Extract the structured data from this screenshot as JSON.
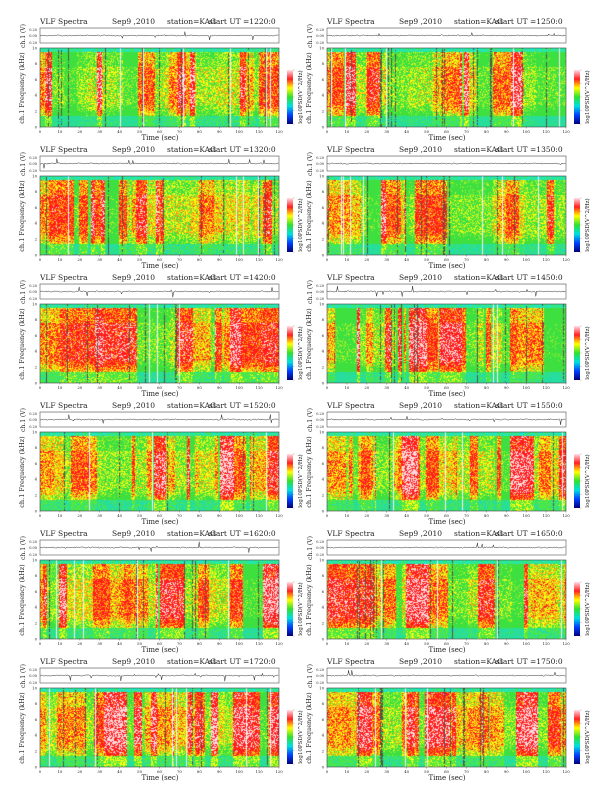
{
  "chart_data": {
    "type": "heatmap",
    "title": "VLF Spectra",
    "xlabel": "Time (sec)",
    "ylabel": "ch.1 Frequency (kHz)",
    "waveform_ylabel": "ch.1 (V)",
    "colorbar_label": "log10PSD(V^2/Hz)",
    "xlim": [
      0,
      120
    ],
    "ylim": [
      0,
      10
    ],
    "waveform_ylim": [
      -0.2,
      0.2
    ],
    "x_ticks": [
      "0",
      "10",
      "20",
      "30",
      "40",
      "50",
      "60",
      "70",
      "80",
      "90",
      "100",
      "110",
      "120"
    ],
    "y_ticks": [
      "0",
      "2",
      "4",
      "6",
      "8",
      "10"
    ],
    "waveform_ticks": [
      "0.20",
      "0.00",
      "0.20"
    ],
    "colormap": [
      "#00007a",
      "#0040ff",
      "#00e0e0",
      "#30e030",
      "#ffff00",
      "#ff2020",
      "#ffe0e8"
    ],
    "panels": [
      {
        "title": "VLF Spectra",
        "date": "Sep9 ,2010",
        "station": "station=KAG",
        "start_ut": "start  UT  =1220:0"
      },
      {
        "title": "VLF Spectra",
        "date": "Sep9 ,2010",
        "station": "station=KAG",
        "start_ut": "start  UT  =1250:0"
      },
      {
        "title": "VLF Spectra",
        "date": "Sep9 ,2010",
        "station": "station=KAG",
        "start_ut": "start  UT  =1320:0"
      },
      {
        "title": "VLF Spectra",
        "date": "Sep9 ,2010",
        "station": "station=KAG",
        "start_ut": "start  UT  =1350:0"
      },
      {
        "title": "VLF Spectra",
        "date": "Sep9 ,2010",
        "station": "station=KAG",
        "start_ut": "start  UT  =1420:0"
      },
      {
        "title": "VLF Spectra",
        "date": "Sep9 ,2010",
        "station": "station=KAG",
        "start_ut": "start  UT  =1450:0"
      },
      {
        "title": "VLF Spectra",
        "date": "Sep9 ,2010",
        "station": "station=KAG",
        "start_ut": "start  UT  =1520:0"
      },
      {
        "title": "VLF Spectra",
        "date": "Sep9 ,2010",
        "station": "station=KAG",
        "start_ut": "start  UT  =1550:0"
      },
      {
        "title": "VLF Spectra",
        "date": "Sep9 ,2010",
        "station": "station=KAG",
        "start_ut": "start  UT  =1620:0"
      },
      {
        "title": "VLF Spectra",
        "date": "Sep9 ,2010",
        "station": "station=KAG",
        "start_ut": "start  UT  =1650:0"
      },
      {
        "title": "VLF Spectra",
        "date": "Sep9 ,2010",
        "station": "station=KAG",
        "start_ut": "start  UT  =1720:0"
      },
      {
        "title": "VLF Spectra",
        "date": "Sep9 ,2010",
        "station": "station=KAG",
        "start_ut": "start  UT  =1750:0"
      }
    ]
  }
}
